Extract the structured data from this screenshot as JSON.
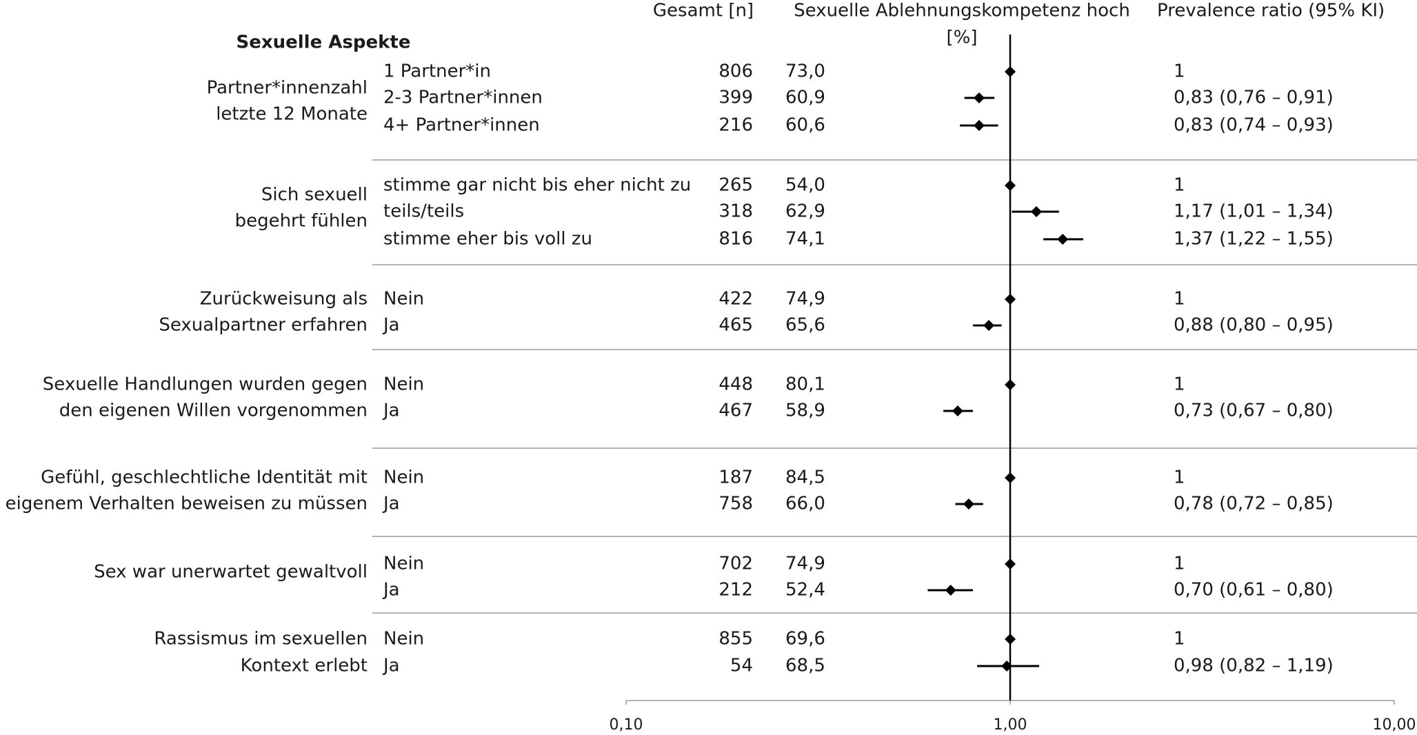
{
  "chart_data": {
    "type": "forest",
    "headers": {
      "n": "Gesamt [n]",
      "pct": [
        "Sexuelle Ablehnungskompetenz hoch",
        "[%]"
      ],
      "pr": "Prevalence ratio (95% KI)"
    },
    "section": "Sexuelle Aspekte",
    "log_scale": true,
    "xlim": [
      0.1,
      10
    ],
    "xticks": [
      {
        "value": 0.1,
        "label": "0,10"
      },
      {
        "value": 1,
        "label": "1,00"
      },
      {
        "value": 10,
        "label": "10,00"
      }
    ],
    "reference_line": 1,
    "color": "#000000",
    "groups": [
      {
        "label": [
          "Partner*innenzahl",
          "letzte 12 Monate"
        ],
        "categories": [
          "1 Partner*in",
          "2-3 Partner*innen",
          "4+ Partner*innen"
        ],
        "n": [
          806,
          399,
          216
        ],
        "pct": {
          "values": [
            73.0,
            60.9,
            60.6
          ],
          "value_labels": [
            "73,0",
            "60,9",
            "60,6"
          ]
        },
        "pr": {
          "values": [
            1,
            0.83,
            0.83
          ],
          "lo": [
            null,
            0.76,
            0.74
          ],
          "hi": [
            null,
            0.91,
            0.93
          ],
          "value_labels": [
            "1",
            "0,83 (0,76 – 0,91)",
            "0,83 (0,74 – 0,93)"
          ]
        }
      },
      {
        "label": [
          "Sich sexuell",
          "begehrt fühlen"
        ],
        "categories": [
          "stimme gar nicht bis eher nicht zu",
          "teils/teils",
          "stimme eher bis voll zu"
        ],
        "n": [
          265,
          318,
          816
        ],
        "pct": {
          "values": [
            54.0,
            62.9,
            74.1
          ],
          "value_labels": [
            "54,0",
            "62,9",
            "74,1"
          ]
        },
        "pr": {
          "values": [
            1,
            1.17,
            1.37
          ],
          "lo": [
            null,
            1.01,
            1.22
          ],
          "hi": [
            null,
            1.34,
            1.55
          ],
          "value_labels": [
            "1",
            "1,17 (1,01 – 1,34)",
            "1,37 (1,22 – 1,55)"
          ]
        }
      },
      {
        "label": [
          "Zurückweisung als",
          "Sexualpartner erfahren"
        ],
        "categories": [
          "Nein",
          "Ja"
        ],
        "n": [
          422,
          465
        ],
        "pct": {
          "values": [
            74.9,
            65.6
          ],
          "value_labels": [
            "74,9",
            "65,6"
          ]
        },
        "pr": {
          "values": [
            1,
            0.88
          ],
          "lo": [
            null,
            0.8
          ],
          "hi": [
            null,
            0.95
          ],
          "value_labels": [
            "1",
            "0,88 (0,80 – 0,95)"
          ]
        }
      },
      {
        "label": [
          "Sexuelle Handlungen wurden gegen",
          "den eigenen Willen vorgenommen"
        ],
        "categories": [
          "Nein",
          "Ja"
        ],
        "n": [
          448,
          467
        ],
        "pct": {
          "values": [
            80.1,
            58.9
          ],
          "value_labels": [
            "80,1",
            "58,9"
          ]
        },
        "pr": {
          "values": [
            1,
            0.73
          ],
          "lo": [
            null,
            0.67
          ],
          "hi": [
            null,
            0.8
          ],
          "value_labels": [
            "1",
            "0,73 (0,67 – 0,80)"
          ]
        }
      },
      {
        "label": [
          "Gefühl, geschlechtliche Identität mit",
          "eigenem Verhalten beweisen zu müssen"
        ],
        "categories": [
          "Nein",
          "Ja"
        ],
        "n": [
          187,
          758
        ],
        "pct": {
          "values": [
            84.5,
            66.0
          ],
          "value_labels": [
            "84,5",
            "66,0"
          ]
        },
        "pr": {
          "values": [
            1,
            0.78
          ],
          "lo": [
            null,
            0.72
          ],
          "hi": [
            null,
            0.85
          ],
          "value_labels": [
            "1",
            "0,78 (0,72 – 0,85)"
          ]
        }
      },
      {
        "label": [
          "Sex war unerwartet gewaltvoll"
        ],
        "categories": [
          "Nein",
          "Ja"
        ],
        "n": [
          702,
          212
        ],
        "pct": {
          "values": [
            74.9,
            52.4
          ],
          "value_labels": [
            "74,9",
            "52,4"
          ]
        },
        "pr": {
          "values": [
            1,
            0.7
          ],
          "lo": [
            null,
            0.61
          ],
          "hi": [
            null,
            0.8
          ],
          "value_labels": [
            "1",
            "0,70 (0,61 – 0,80)"
          ]
        }
      },
      {
        "label": [
          "Rassismus im sexuellen",
          "Kontext erlebt"
        ],
        "categories": [
          "Nein",
          "Ja"
        ],
        "n": [
          855,
          54
        ],
        "pct": {
          "values": [
            69.6,
            68.5
          ],
          "value_labels": [
            "69,6",
            "68,5"
          ]
        },
        "pr": {
          "values": [
            1,
            0.98
          ],
          "lo": [
            null,
            0.82
          ],
          "hi": [
            null,
            1.19
          ],
          "value_labels": [
            "1",
            "0,98 (0,82 – 1,19)"
          ]
        }
      }
    ]
  }
}
